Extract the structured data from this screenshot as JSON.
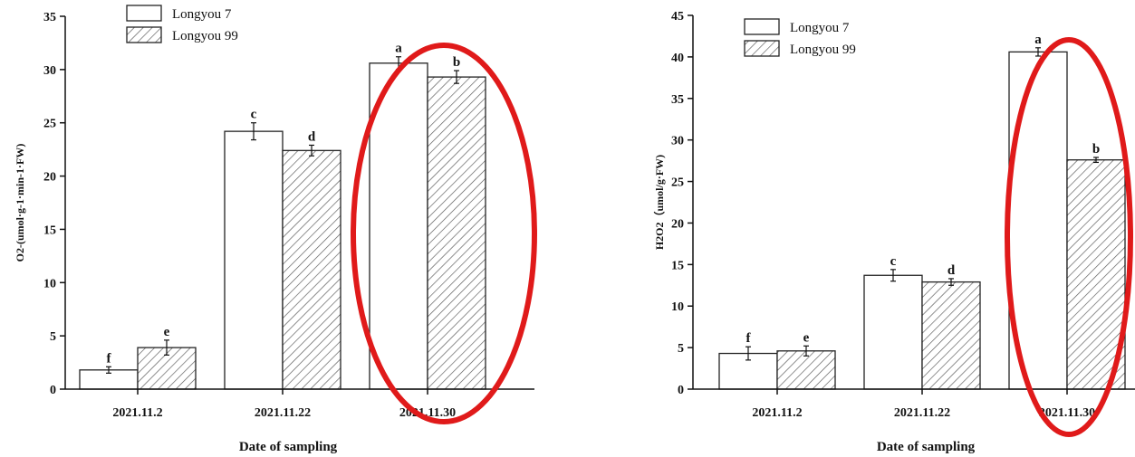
{
  "colors": {
    "bar_plain_fill": "#ffffff",
    "bar_outline": "#222222",
    "hatch": "#555555",
    "highlight_ring": "#e01a1a"
  },
  "chart_data": [
    {
      "type": "bar",
      "categories": [
        "2021.11.2",
        "2021.11.22",
        "2021.11.30"
      ],
      "series": [
        {
          "name": "Longyou 7",
          "values": [
            1.8,
            24.2,
            30.6
          ],
          "errors": [
            0.3,
            0.8,
            0.6
          ],
          "labels": [
            "f",
            "c",
            "a"
          ],
          "fill": "plain"
        },
        {
          "name": "Longyou 99",
          "values": [
            3.9,
            22.4,
            29.3
          ],
          "errors": [
            0.7,
            0.5,
            0.6
          ],
          "labels": [
            "e",
            "d",
            "b"
          ],
          "fill": "hatched"
        }
      ],
      "xlabel": "Date of sampling",
      "ylabel": "O2-(umol·g-1·min-1·FW)",
      "ylim": [
        0,
        35
      ],
      "yticks": [
        0,
        5,
        10,
        15,
        20,
        25,
        30,
        35
      ],
      "legend_position": "top-left",
      "highlight_category": 2
    },
    {
      "type": "bar",
      "categories": [
        "2021.11.2",
        "2021.11.22",
        "2021.11.30"
      ],
      "series": [
        {
          "name": "Longyou 7",
          "values": [
            4.3,
            13.7,
            40.6
          ],
          "errors": [
            0.8,
            0.7,
            0.5
          ],
          "labels": [
            "f",
            "c",
            "a"
          ],
          "fill": "plain"
        },
        {
          "name": "Longyou 99",
          "values": [
            4.6,
            12.9,
            27.6
          ],
          "errors": [
            0.6,
            0.4,
            0.3
          ],
          "labels": [
            "e",
            "d",
            "b"
          ],
          "fill": "hatched"
        }
      ],
      "xlabel": "Date of sampling",
      "ylabel": "H2O2（umol/g·FW)",
      "ylim": [
        0,
        45
      ],
      "yticks": [
        0,
        5,
        10,
        15,
        20,
        25,
        30,
        35,
        40,
        45
      ],
      "legend_position": "top-left",
      "highlight_category": 2
    }
  ]
}
